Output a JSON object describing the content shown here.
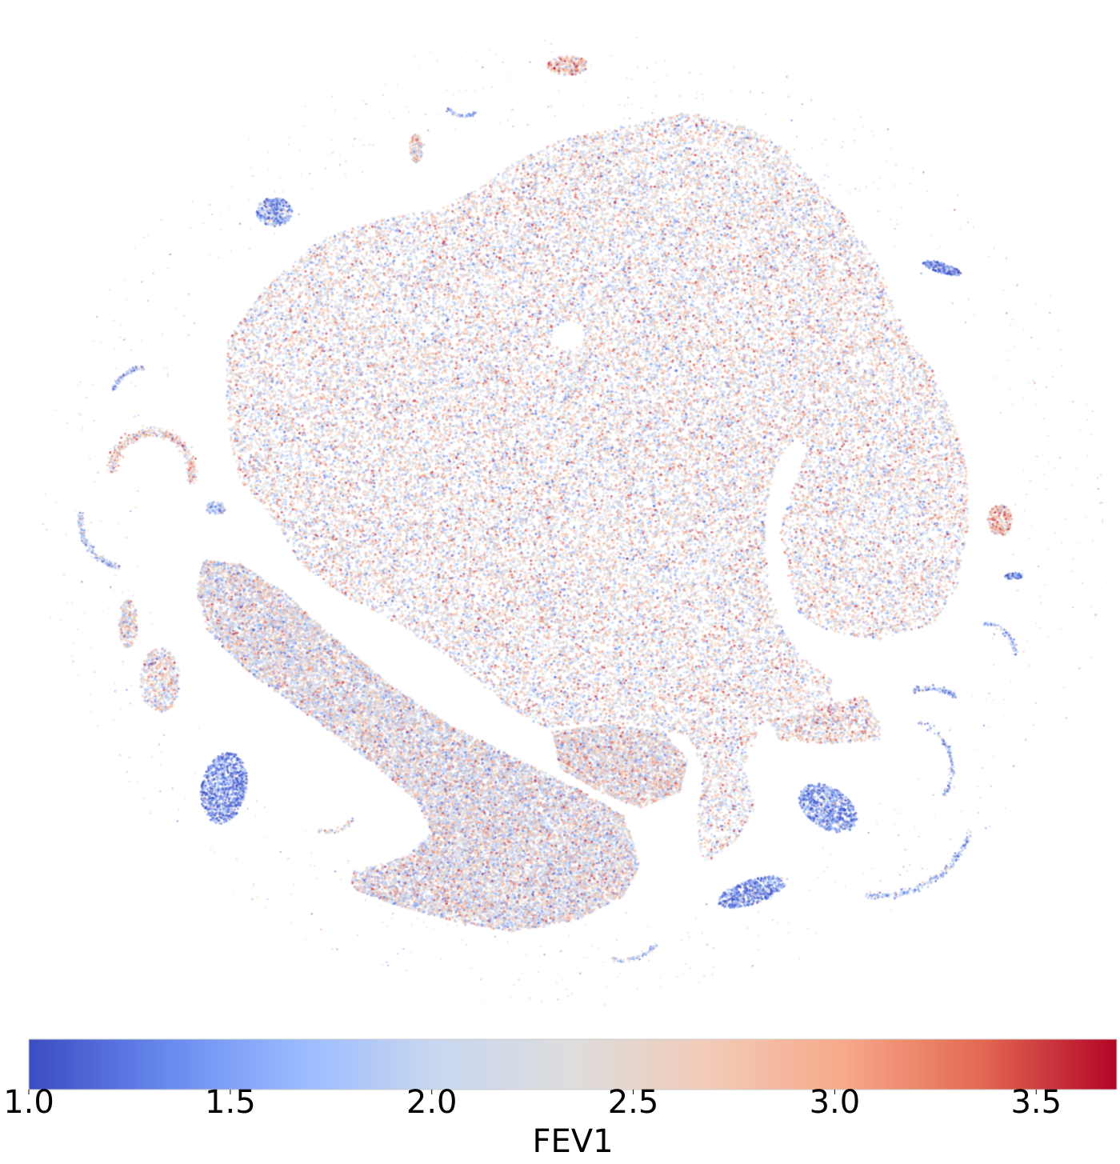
{
  "chart_data": {
    "type": "scatter",
    "subtype": "tsne-embedding",
    "title": "",
    "xlabel": "",
    "ylabel": "",
    "axes_visible": false,
    "grid": false,
    "color_variable": "FEV1",
    "colormap": "coolwarm",
    "colormap_stops": [
      "#3b4cc0",
      "#6788ee",
      "#9abbff",
      "#c9d7f0",
      "#dddddd",
      "#f2cbb7",
      "#f7a889",
      "#e26952",
      "#b40426"
    ],
    "color_range": [
      1.0,
      3.7
    ],
    "colorbar": {
      "label": "FEV1",
      "ticks": [
        1.0,
        1.5,
        2.0,
        2.5,
        3.0,
        3.5
      ],
      "tick_labels": [
        "1.0",
        "1.5",
        "2.0",
        "2.5",
        "3.0",
        "3.5"
      ],
      "position": "bottom"
    },
    "point_color_distribution": "mixed across full range; several small peripheral clusters predominantly low (blue)"
  }
}
